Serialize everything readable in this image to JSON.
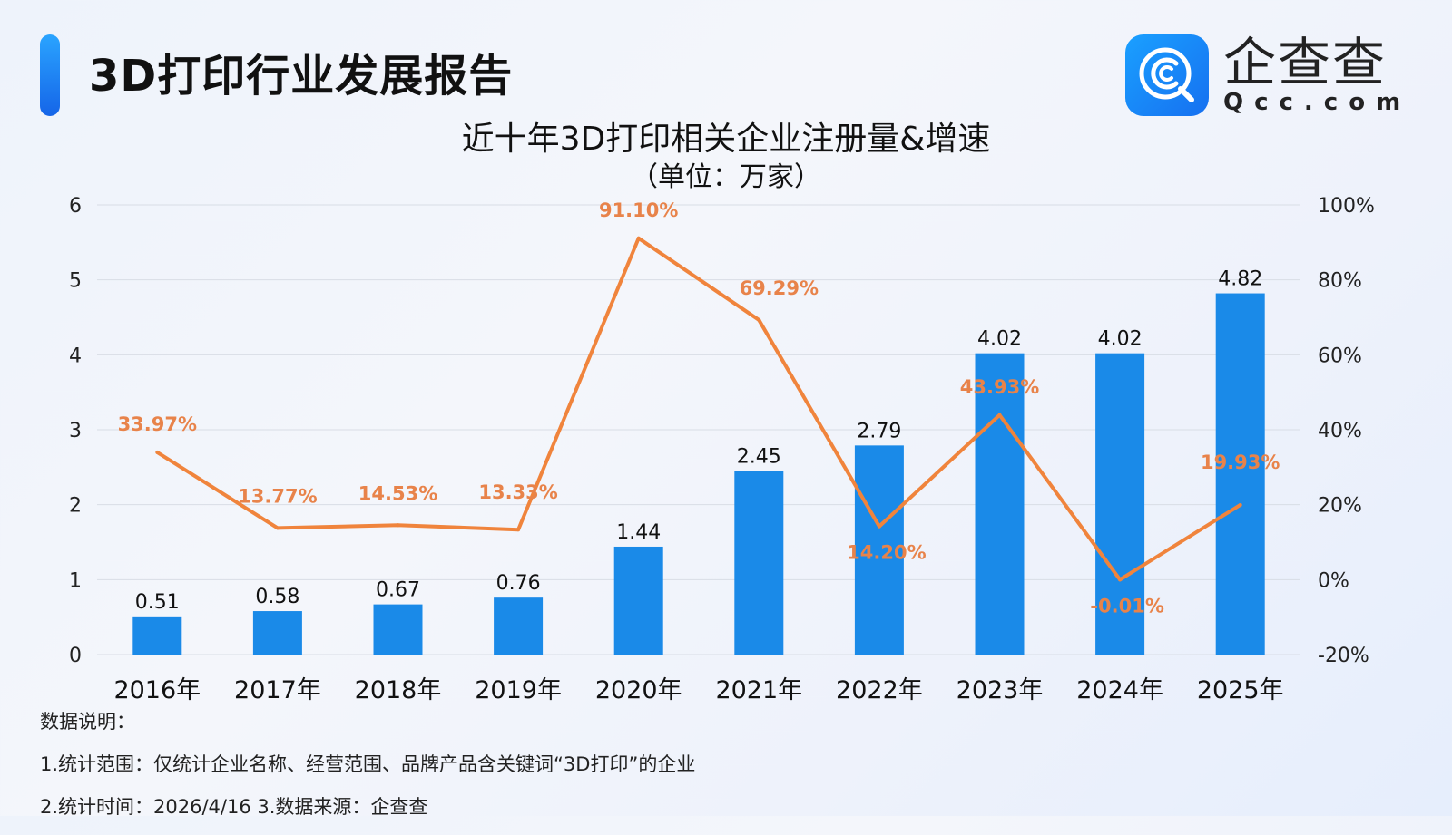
{
  "header": {
    "title": "3D打印行业发展报告"
  },
  "logo": {
    "cn": "企查查",
    "en": "Qcc.com",
    "brand_color": "#1782f5"
  },
  "chart_data": {
    "type": "bar+line",
    "title": "近十年3D打印相关企业注册量&增速",
    "subtitle": "（单位：万家）",
    "categories": [
      "2016年",
      "2017年",
      "2018年",
      "2019年",
      "2020年",
      "2021年",
      "2022年",
      "2023年",
      "2024年",
      "2025年"
    ],
    "series": [
      {
        "type": "bar",
        "axis": "left",
        "color": "#1a8ae8",
        "values": [
          0.51,
          0.58,
          0.67,
          0.76,
          1.44,
          2.45,
          2.79,
          4.02,
          4.02,
          4.82
        ],
        "labels": [
          "0.51",
          "0.58",
          "0.67",
          "0.76",
          "1.44",
          "2.45",
          "2.79",
          "4.02",
          "4.02",
          "4.82"
        ]
      },
      {
        "type": "line",
        "axis": "right",
        "color": "#f0843c",
        "values": [
          33.97,
          13.77,
          14.53,
          13.33,
          91.1,
          69.29,
          14.2,
          43.93,
          -0.01,
          19.93
        ],
        "labels": [
          "33.97%",
          "13.77%",
          "14.53%",
          "13.33%",
          "91.10%",
          "69.29%",
          "14.20%",
          "43.93%",
          "-0.01%",
          "19.93%"
        ]
      }
    ],
    "y_left": {
      "range": [
        0,
        6
      ],
      "ticks": [
        "0",
        "1",
        "2",
        "3",
        "4",
        "5",
        "6"
      ]
    },
    "y_right": {
      "range": [
        -20,
        100
      ],
      "ticks": [
        "-20%",
        "0%",
        "20%",
        "40%",
        "60%",
        "80%",
        "100%"
      ]
    },
    "grid": true,
    "legend": "none"
  },
  "notes": {
    "heading": "数据说明：",
    "line1": "1.统计范围：仅统计企业名称、经营范围、品牌产品含关键词“3D打印”的企业",
    "line2": "2.统计时间：2026/4/16  3.数据来源：企查查"
  }
}
